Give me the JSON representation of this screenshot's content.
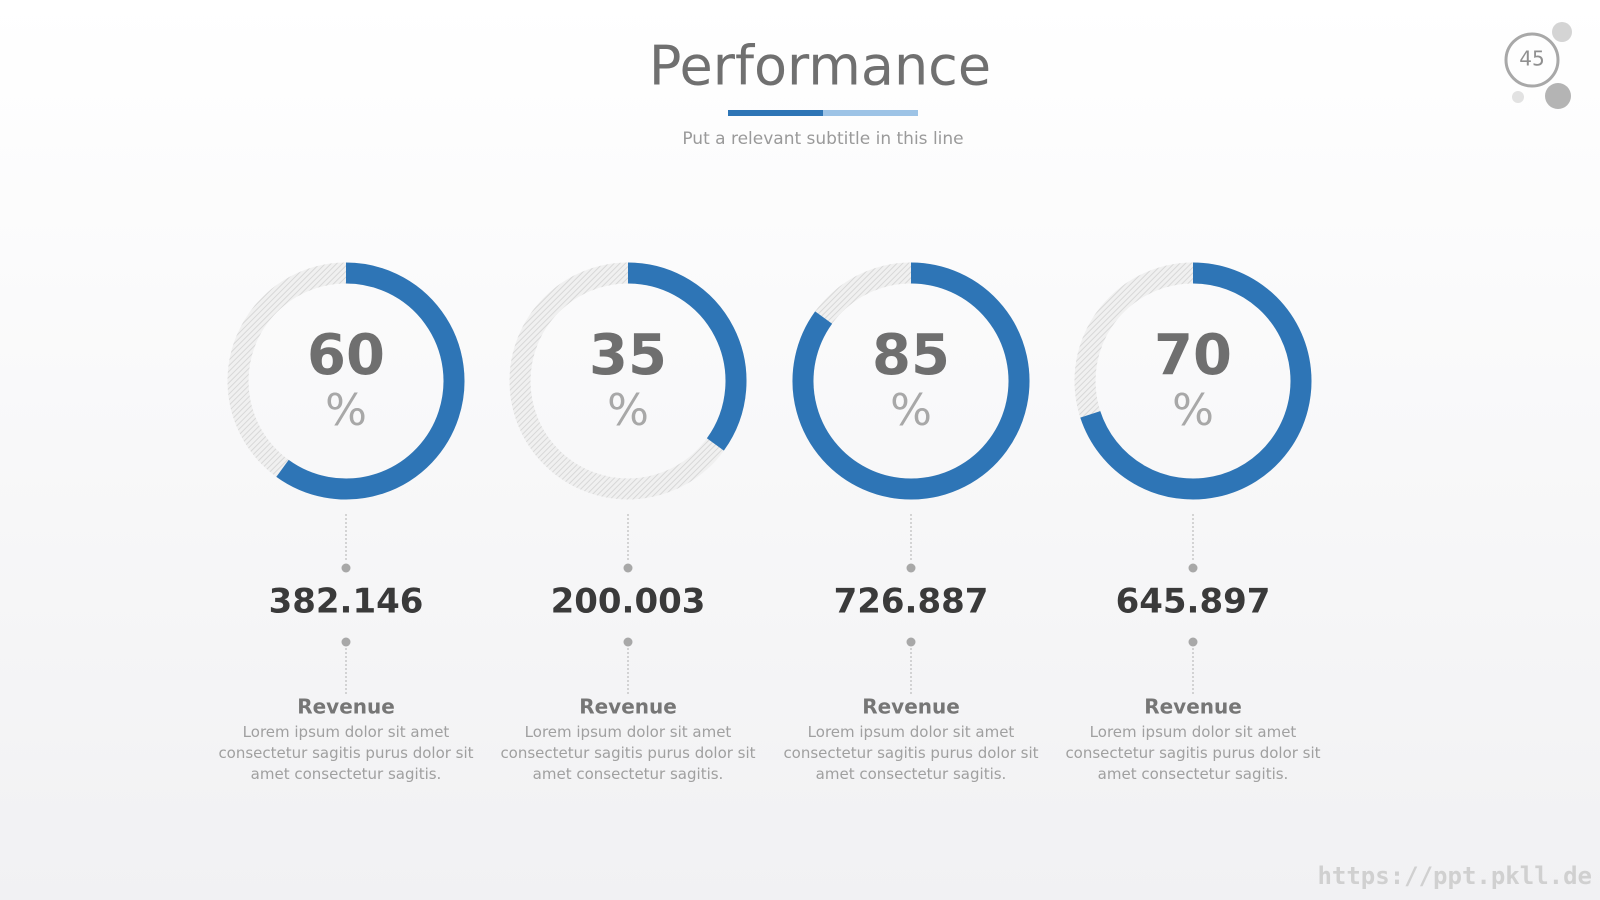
{
  "header": {
    "title": "Performance",
    "subtitle": "Put a relevant subtitle in this line",
    "page_number": "45"
  },
  "chart_data": [
    {
      "type": "donut",
      "values": [
        60
      ],
      "unit": "%",
      "ylim": [
        0,
        100
      ],
      "color": "#2e75b6",
      "amount": "382.146",
      "label": "Revenue",
      "description": "Lorem ipsum dolor sit amet consectetur sagitis purus dolor sit amet consectetur sagitis."
    },
    {
      "type": "donut",
      "values": [
        35
      ],
      "unit": "%",
      "ylim": [
        0,
        100
      ],
      "color": "#2e75b6",
      "amount": "200.003",
      "label": "Revenue",
      "description": "Lorem ipsum dolor sit amet consectetur sagitis purus dolor sit amet consectetur sagitis."
    },
    {
      "type": "donut",
      "values": [
        85
      ],
      "unit": "%",
      "ylim": [
        0,
        100
      ],
      "color": "#2e75b6",
      "amount": "726.887",
      "label": "Revenue",
      "description": "Lorem ipsum dolor sit amet consectetur sagitis purus dolor sit amet consectetur sagitis."
    },
    {
      "type": "donut",
      "values": [
        70
      ],
      "unit": "%",
      "ylim": [
        0,
        100
      ],
      "color": "#2e75b6",
      "amount": "645.897",
      "label": "Revenue",
      "description": "Lorem ipsum dolor sit amet consectetur sagitis purus dolor sit amet consectetur sagitis."
    }
  ],
  "footer": {
    "url": "https://ppt.pkll.de"
  }
}
